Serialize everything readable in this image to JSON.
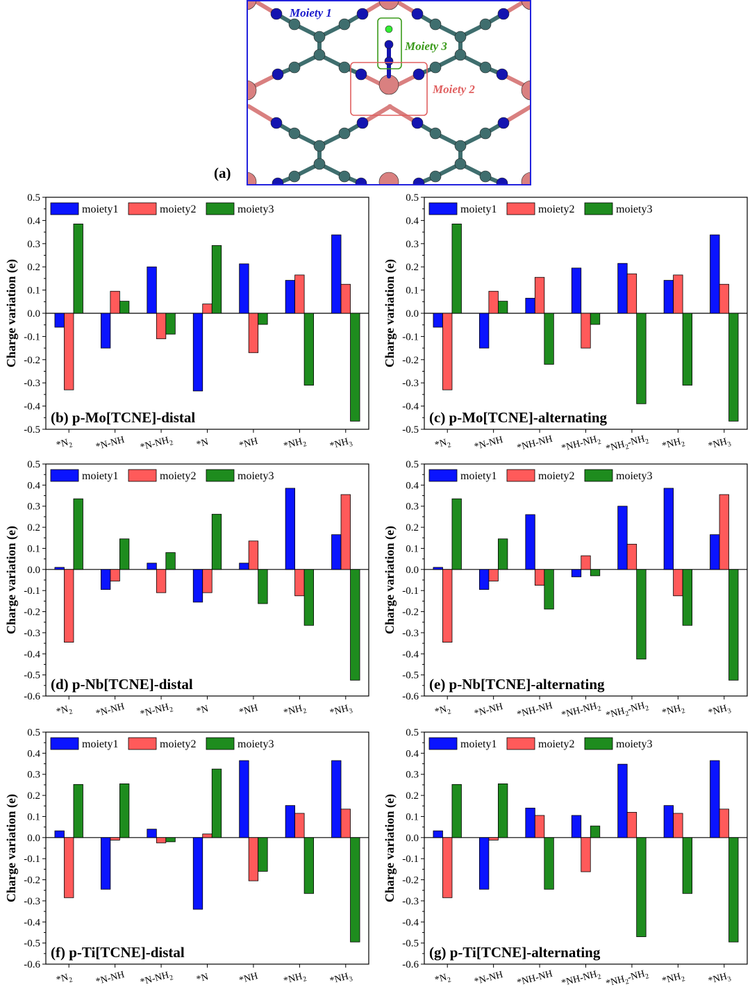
{
  "molecule": {
    "panel_label": "(a)",
    "moiety1_label": "Moiety 1",
    "moiety2_label": "Moiety 2",
    "moiety3_label": "Moiety 3",
    "colors": {
      "moiety1": "#1a1acc",
      "moiety2": "#e06060",
      "moiety3": "#3a9a1a",
      "carbon": "#3f6e6e",
      "nitrogen": "#1414b0",
      "metal": "#d98080",
      "hydrogen": "#33ee33",
      "frame": "#2222dd"
    }
  },
  "legend": {
    "series1": "moiety1",
    "series2": "moiety2",
    "series3": "moiety3"
  },
  "colors": {
    "moiety1": "#0a14ff",
    "moiety2": "#ff5a5a",
    "moiety3": "#1e8c1e"
  },
  "chart_data": [
    {
      "id": "b",
      "type": "bar",
      "title": "(b) p-Mo[TCNE]-distal",
      "ylabel": "Charge variation (e)",
      "categories": [
        "*N2",
        "*N-NH",
        "*N-NH2",
        "*N",
        "*NH",
        "*NH2",
        "*NH3"
      ],
      "ylim": [
        -0.5,
        0.5
      ],
      "series": [
        {
          "name": "moiety1",
          "values": [
            -0.06,
            -0.15,
            0.2,
            -0.335,
            0.213,
            0.142,
            0.338
          ]
        },
        {
          "name": "moiety2",
          "values": [
            -0.33,
            0.095,
            -0.11,
            0.04,
            -0.17,
            0.165,
            0.125
          ]
        },
        {
          "name": "moiety3",
          "values": [
            0.385,
            0.052,
            -0.09,
            0.292,
            -0.048,
            -0.31,
            -0.465
          ]
        }
      ]
    },
    {
      "id": "c",
      "type": "bar",
      "title": "(c) p-Mo[TCNE]-alternating",
      "ylabel": "Charge variation (e)",
      "categories": [
        "*N2",
        "*N-NH",
        "*NH-NH",
        "*NH-NH2",
        "*NH2-NH2",
        "*NH2",
        "*NH3"
      ],
      "ylim": [
        -0.5,
        0.5
      ],
      "series": [
        {
          "name": "moiety1",
          "values": [
            -0.06,
            -0.15,
            0.065,
            0.195,
            0.215,
            0.142,
            0.338
          ]
        },
        {
          "name": "moiety2",
          "values": [
            -0.33,
            0.095,
            0.155,
            -0.15,
            0.17,
            0.165,
            0.125
          ]
        },
        {
          "name": "moiety3",
          "values": [
            0.385,
            0.052,
            -0.22,
            -0.048,
            -0.39,
            -0.31,
            -0.465
          ]
        }
      ]
    },
    {
      "id": "d",
      "type": "bar",
      "title": "(d) p-Nb[TCNE]-distal",
      "ylabel": "Charge variation (e)",
      "categories": [
        "*N2",
        "*N-NH",
        "*N-NH2",
        "*N",
        "*NH",
        "*NH2",
        "*NH3"
      ],
      "ylim": [
        -0.6,
        0.5
      ],
      "series": [
        {
          "name": "moiety1",
          "values": [
            0.01,
            -0.095,
            0.03,
            -0.155,
            0.03,
            0.385,
            0.165
          ]
        },
        {
          "name": "moiety2",
          "values": [
            -0.345,
            -0.055,
            -0.11,
            -0.11,
            0.135,
            -0.125,
            0.355
          ]
        },
        {
          "name": "moiety3",
          "values": [
            0.335,
            0.145,
            0.08,
            0.262,
            -0.162,
            -0.265,
            -0.525
          ]
        }
      ]
    },
    {
      "id": "e",
      "type": "bar",
      "title": "(e) p-Nb[TCNE]-alternating",
      "ylabel": "Charge variation (e)",
      "categories": [
        "*N2",
        "*N-NH",
        "*NH-NH",
        "*NH-NH2",
        "*NH2-NH2",
        "*NH2",
        "*NH3"
      ],
      "ylim": [
        -0.6,
        0.5
      ],
      "series": [
        {
          "name": "moiety1",
          "values": [
            0.01,
            -0.095,
            0.26,
            -0.035,
            0.3,
            0.385,
            0.165
          ]
        },
        {
          "name": "moiety2",
          "values": [
            -0.345,
            -0.055,
            -0.075,
            0.065,
            0.12,
            -0.125,
            0.355
          ]
        },
        {
          "name": "moiety3",
          "values": [
            0.335,
            0.145,
            -0.188,
            -0.03,
            -0.425,
            -0.265,
            -0.525
          ]
        }
      ]
    },
    {
      "id": "f",
      "type": "bar",
      "title": "(f) p-Ti[TCNE]-distal",
      "ylabel": "Charge variation (e)",
      "categories": [
        "*N2",
        "*N-NH",
        "*N-NH2",
        "*N",
        "*NH",
        "*NH2",
        "*NH3"
      ],
      "ylim": [
        -0.6,
        0.5
      ],
      "series": [
        {
          "name": "moiety1",
          "values": [
            0.032,
            -0.245,
            0.04,
            -0.34,
            0.365,
            0.152,
            0.365
          ]
        },
        {
          "name": "moiety2",
          "values": [
            -0.285,
            -0.012,
            -0.025,
            0.017,
            -0.205,
            0.115,
            0.135
          ]
        },
        {
          "name": "moiety3",
          "values": [
            0.252,
            0.255,
            -0.02,
            0.325,
            -0.16,
            -0.265,
            -0.495
          ]
        }
      ]
    },
    {
      "id": "g",
      "type": "bar",
      "title": "(g) p-Ti[TCNE]-alternating",
      "ylabel": "Charge variation (e)",
      "categories": [
        "*N2",
        "*N-NH",
        "*NH-NH",
        "*NH-NH2",
        "*NH2-NH2",
        "*NH2",
        "*NH3"
      ],
      "ylim": [
        -0.6,
        0.5
      ],
      "series": [
        {
          "name": "moiety1",
          "values": [
            0.032,
            -0.245,
            0.14,
            0.105,
            0.348,
            0.152,
            0.365
          ]
        },
        {
          "name": "moiety2",
          "values": [
            -0.285,
            -0.012,
            0.105,
            -0.162,
            0.12,
            0.115,
            0.135
          ]
        },
        {
          "name": "moiety3",
          "values": [
            0.252,
            0.255,
            -0.245,
            0.055,
            -0.47,
            -0.265,
            -0.495
          ]
        }
      ]
    }
  ]
}
